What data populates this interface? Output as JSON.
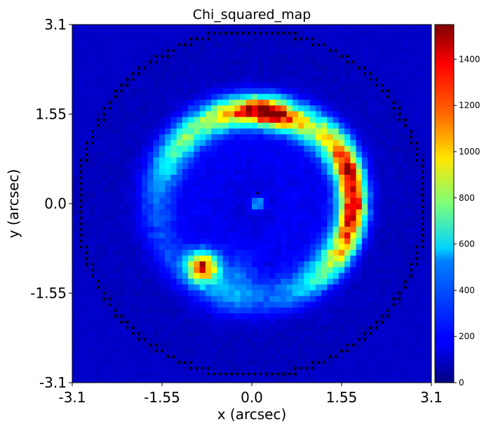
{
  "chart_data": {
    "type": "heatmap",
    "title": "Chi_squared_map",
    "xlabel": "x (arcsec)",
    "ylabel": "y (arcsec)",
    "xlim": [
      -3.1,
      3.1
    ],
    "ylim": [
      -3.1,
      3.1
    ],
    "xticks": [
      "-3.1",
      "-1.55",
      "0.0",
      "1.55",
      "3.1"
    ],
    "yticks": [
      "3.1",
      "1.55",
      "0.0",
      "-1.55",
      "-3.1"
    ],
    "colormap": "jet",
    "colorbar": {
      "min": 0,
      "max": 1550,
      "ticks": [
        "0",
        "200",
        "400",
        "600",
        "800",
        "1000",
        "1200",
        "1400"
      ]
    },
    "grid": false,
    "mask_boundary_radius_arcsec": 3.0,
    "features": [
      {
        "description": "upper arc",
        "peak_x": 0.35,
        "peak_y": 1.55,
        "peak_value": 1550
      },
      {
        "description": "right arc",
        "peak_x": 1.75,
        "peak_y": 0.0,
        "peak_value": 1450
      },
      {
        "description": "lower-left blob",
        "peak_x": -0.85,
        "peak_y": -1.1,
        "peak_value": 1300
      },
      {
        "description": "central spot",
        "peak_x": 0.1,
        "peak_y": 0.0,
        "peak_value": 450
      }
    ]
  }
}
